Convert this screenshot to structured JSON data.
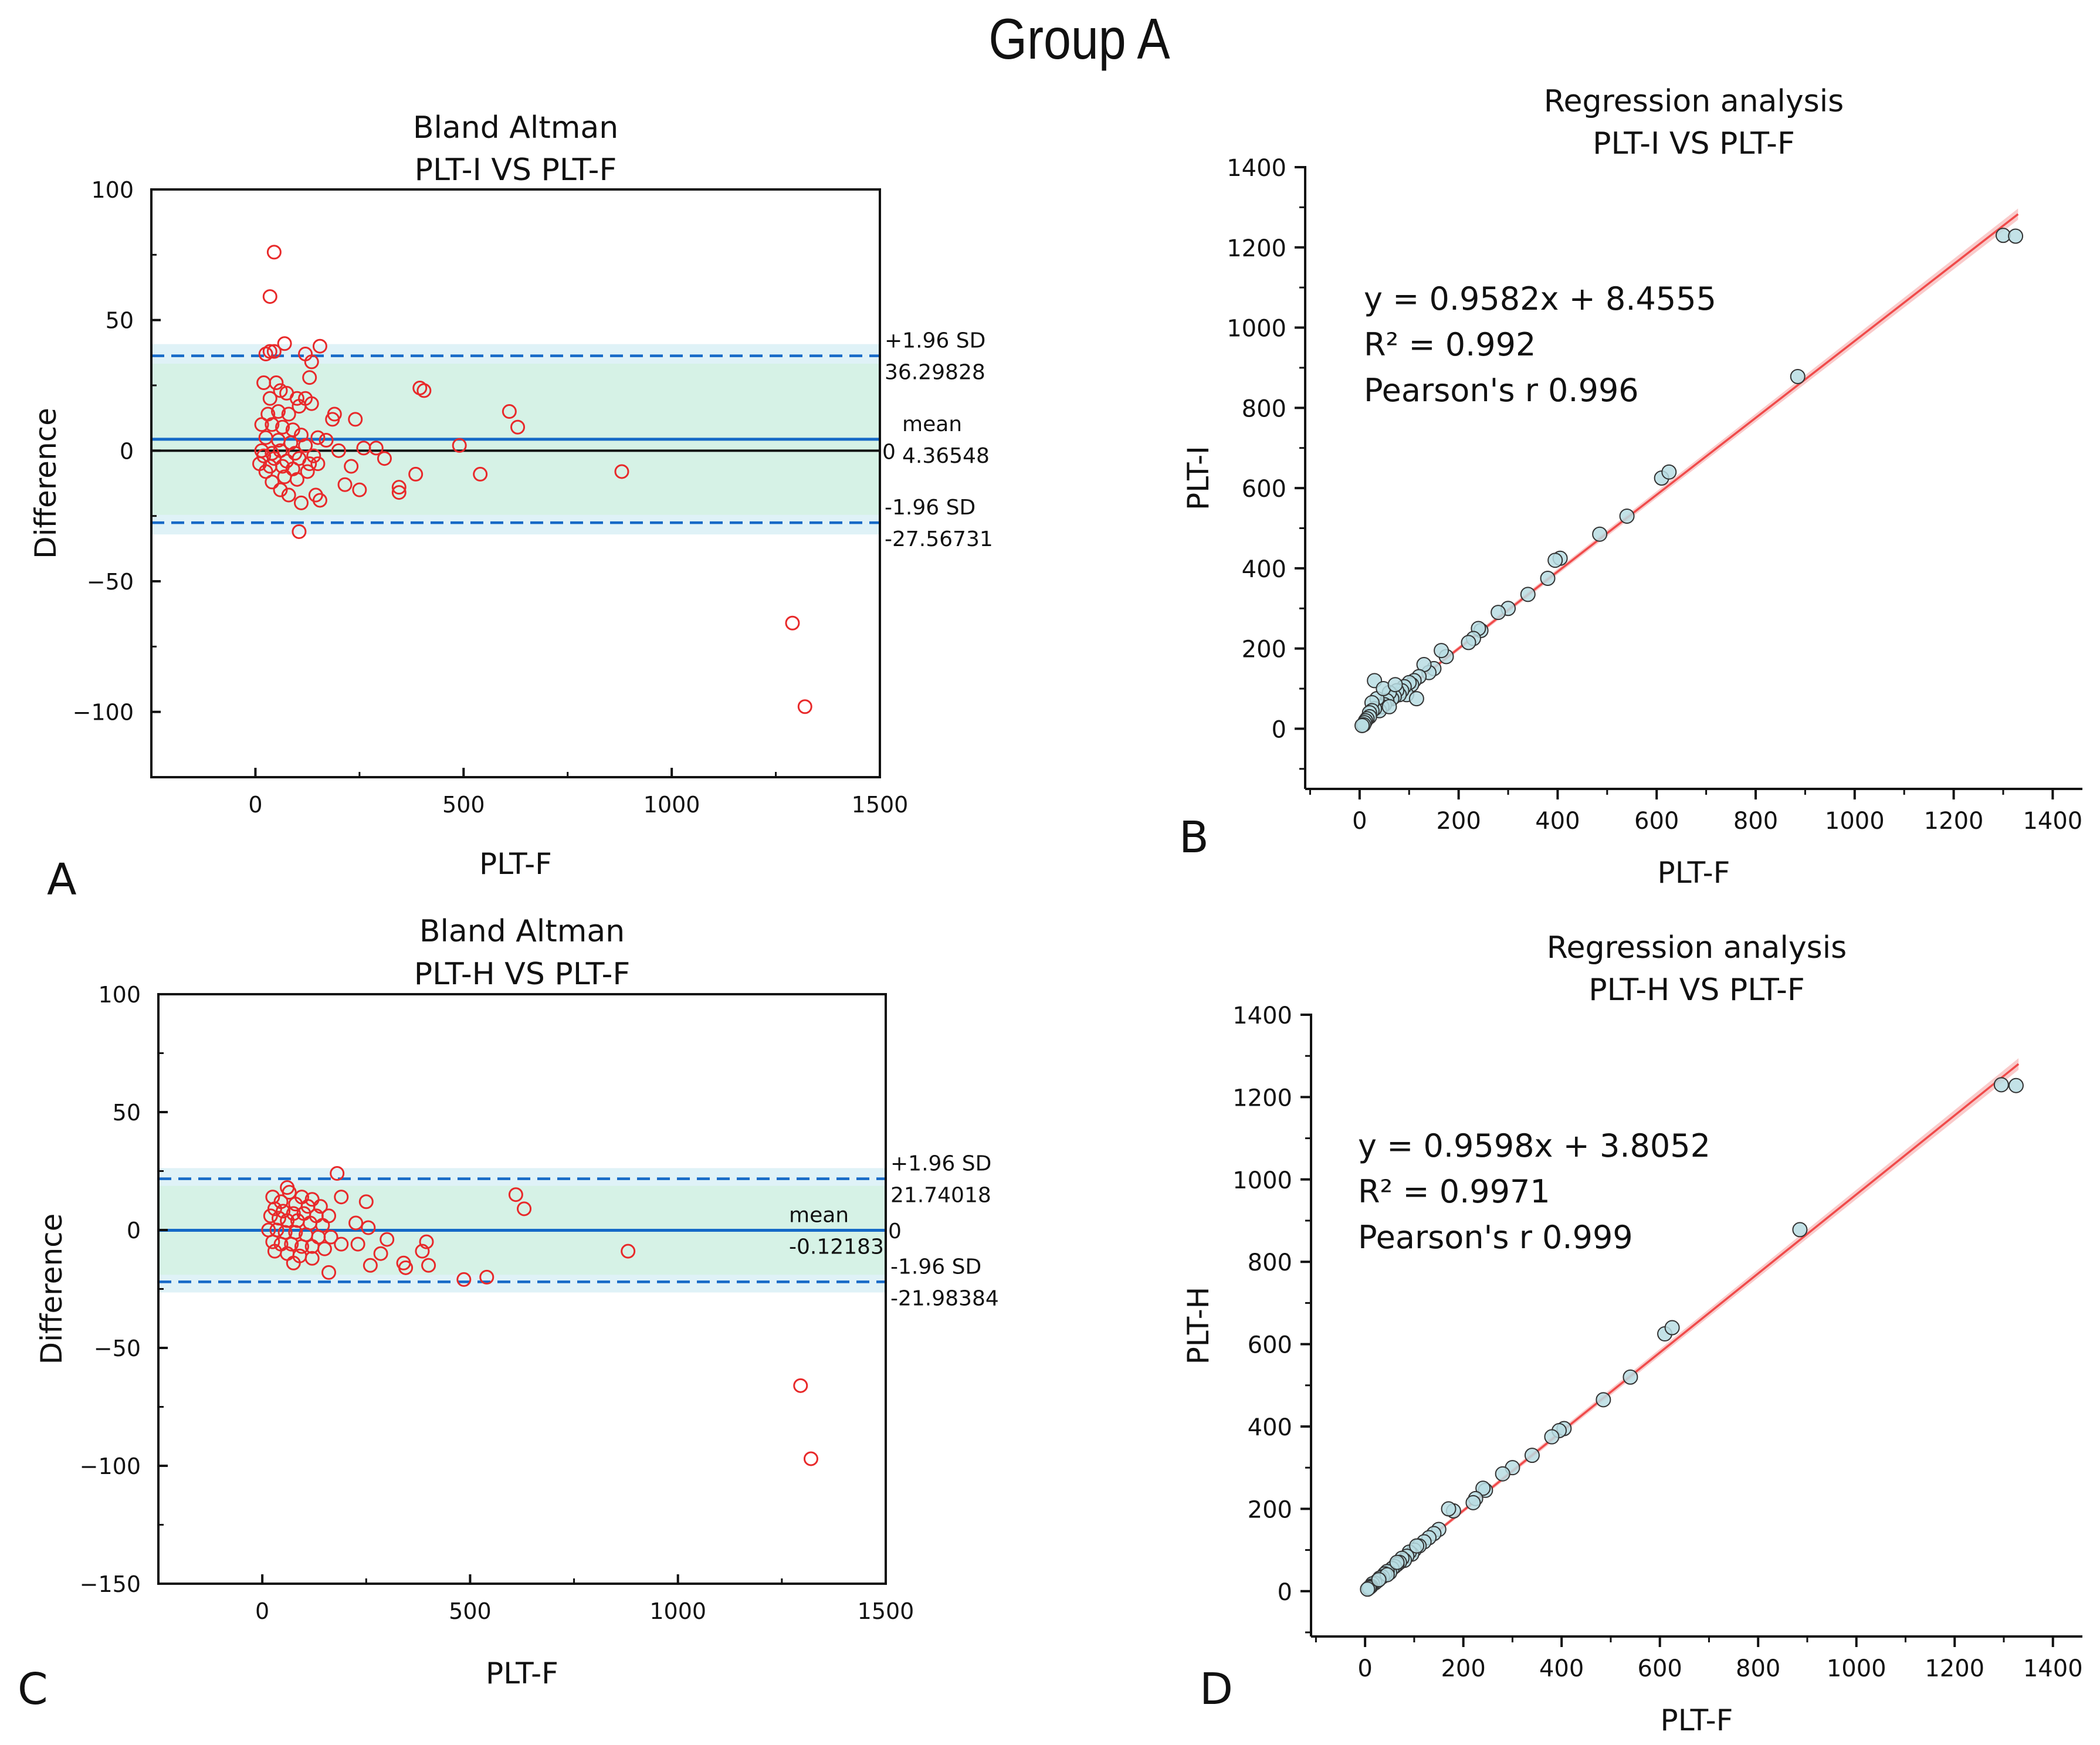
{
  "figure_title": "Group A",
  "panel_labels": [
    "A",
    "B",
    "C",
    "D"
  ],
  "colors": {
    "red": "#e8292a",
    "blue": "#1569c7",
    "loa_band": "#dff2f7",
    "mean_band": "#d6f2e6",
    "scatter_fill": "#b8dde3",
    "regression_line": "#f04a4a",
    "regression_band": "#f7b5b5"
  },
  "chart_data": [
    {
      "type": "scatter",
      "subtype": "bland-altman",
      "panel": "A",
      "title": [
        "Bland Altman",
        "PLT-I VS PLT-F"
      ],
      "xlabel": "PLT-F",
      "ylabel": "Difference",
      "xlim": [
        -250,
        1500
      ],
      "ylim": [
        -125,
        100
      ],
      "xticks": [
        0,
        500,
        1000,
        1500
      ],
      "yticks": [
        -100,
        -50,
        0,
        50,
        100
      ],
      "ytick_labels": [
        "−100",
        "−50",
        "0",
        "50",
        "100"
      ],
      "mean": 4.36548,
      "upper_loa": 36.29828,
      "lower_loa": -27.56731,
      "annotations": {
        "upper_label": "+1.96 SD",
        "upper_value": "36.29828",
        "mean_label": "mean",
        "mean_value": "4.36548",
        "zero_label": "0",
        "lower_label": "-1.96 SD",
        "lower_value": "-27.56731"
      },
      "points": [
        [
          45,
          76
        ],
        [
          35,
          59
        ],
        [
          70,
          41
        ],
        [
          155,
          40
        ],
        [
          35,
          38
        ],
        [
          25,
          37
        ],
        [
          45,
          38
        ],
        [
          120,
          37
        ],
        [
          135,
          34
        ],
        [
          130,
          28
        ],
        [
          50,
          26
        ],
        [
          20,
          26
        ],
        [
          60,
          23
        ],
        [
          75,
          22
        ],
        [
          395,
          24
        ],
        [
          405,
          23
        ],
        [
          100,
          20
        ],
        [
          120,
          20
        ],
        [
          35,
          20
        ],
        [
          135,
          18
        ],
        [
          610,
          15
        ],
        [
          55,
          15
        ],
        [
          105,
          17
        ],
        [
          80,
          14
        ],
        [
          30,
          14
        ],
        [
          190,
          14
        ],
        [
          185,
          12
        ],
        [
          240,
          12
        ],
        [
          630,
          9
        ],
        [
          15,
          10
        ],
        [
          40,
          10
        ],
        [
          65,
          9
        ],
        [
          90,
          8
        ],
        [
          110,
          6
        ],
        [
          150,
          5
        ],
        [
          170,
          4
        ],
        [
          25,
          5
        ],
        [
          55,
          4
        ],
        [
          85,
          3
        ],
        [
          120,
          2
        ],
        [
          490,
          2
        ],
        [
          260,
          1
        ],
        [
          290,
          1
        ],
        [
          200,
          0
        ],
        [
          15,
          0
        ],
        [
          40,
          -1
        ],
        [
          60,
          0
        ],
        [
          95,
          -1
        ],
        [
          140,
          -2
        ],
        [
          20,
          -2
        ],
        [
          45,
          -3
        ],
        [
          75,
          -4
        ],
        [
          105,
          -3
        ],
        [
          130,
          -5
        ],
        [
          10,
          -5
        ],
        [
          35,
          -6
        ],
        [
          65,
          -6
        ],
        [
          230,
          -6
        ],
        [
          310,
          -3
        ],
        [
          150,
          -5
        ],
        [
          90,
          -7
        ],
        [
          125,
          -8
        ],
        [
          25,
          -8
        ],
        [
          385,
          -9
        ],
        [
          540,
          -9
        ],
        [
          880,
          -8
        ],
        [
          70,
          -10
        ],
        [
          100,
          -11
        ],
        [
          40,
          -12
        ],
        [
          215,
          -13
        ],
        [
          250,
          -15
        ],
        [
          345,
          -14
        ],
        [
          345,
          -16
        ],
        [
          60,
          -15
        ],
        [
          80,
          -17
        ],
        [
          145,
          -17
        ],
        [
          155,
          -19
        ],
        [
          110,
          -20
        ],
        [
          105,
          -31
        ],
        [
          1290,
          -66
        ],
        [
          1320,
          -98
        ]
      ]
    },
    {
      "type": "scatter",
      "subtype": "regression",
      "panel": "B",
      "title": [
        "Regression analysis",
        "PLT-I VS PLT-F"
      ],
      "xlabel": "PLT-F",
      "ylabel": "PLT-I",
      "xlim": [
        -110,
        1460
      ],
      "ylim": [
        -150,
        1400
      ],
      "xticks": [
        0,
        200,
        400,
        600,
        800,
        1000,
        1200,
        1400
      ],
      "yticks": [
        0,
        200,
        400,
        600,
        800,
        1000,
        1200,
        1400
      ],
      "equation": "y = 0.9582x + 8.4555",
      "r_squared": "R² = 0.992",
      "pearson": "Pearson's r  0.996",
      "slope": 0.9582,
      "intercept": 8.4555,
      "fit_range": [
        0,
        1330
      ],
      "points": [
        [
          1300,
          1230
        ],
        [
          1325,
          1228
        ],
        [
          885,
          878
        ],
        [
          610,
          625
        ],
        [
          625,
          640
        ],
        [
          540,
          530
        ],
        [
          485,
          485
        ],
        [
          405,
          425
        ],
        [
          395,
          420
        ],
        [
          380,
          375
        ],
        [
          340,
          335
        ],
        [
          300,
          300
        ],
        [
          280,
          290
        ],
        [
          245,
          245
        ],
        [
          240,
          250
        ],
        [
          230,
          225
        ],
        [
          220,
          215
        ],
        [
          175,
          180
        ],
        [
          165,
          195
        ],
        [
          150,
          150
        ],
        [
          140,
          140
        ],
        [
          130,
          160
        ],
        [
          120,
          130
        ],
        [
          110,
          120
        ],
        [
          105,
          110
        ],
        [
          100,
          115
        ],
        [
          95,
          85
        ],
        [
          90,
          105
        ],
        [
          85,
          95
        ],
        [
          80,
          85
        ],
        [
          75,
          95
        ],
        [
          70,
          80
        ],
        [
          65,
          75
        ],
        [
          60,
          90
        ],
        [
          55,
          70
        ],
        [
          50,
          60
        ],
        [
          45,
          55
        ],
        [
          40,
          45
        ],
        [
          35,
          75
        ],
        [
          30,
          50
        ],
        [
          30,
          120
        ],
        [
          25,
          65
        ],
        [
          25,
          45
        ],
        [
          20,
          40
        ],
        [
          20,
          30
        ],
        [
          15,
          25
        ],
        [
          12,
          20
        ],
        [
          10,
          15
        ],
        [
          8,
          10
        ],
        [
          5,
          8
        ],
        [
          48,
          100
        ],
        [
          72,
          110
        ],
        [
          115,
          75
        ],
        [
          60,
          55
        ]
      ]
    },
    {
      "type": "scatter",
      "subtype": "bland-altman",
      "panel": "C",
      "title": [
        "Bland Altman",
        "PLT-H VS PLT-F"
      ],
      "xlabel": "PLT-F",
      "ylabel": "Difference",
      "xlim": [
        -250,
        1500
      ],
      "ylim": [
        -150,
        100
      ],
      "xticks": [
        0,
        500,
        1000,
        1500
      ],
      "yticks": [
        -150,
        -100,
        -50,
        0,
        50,
        100
      ],
      "ytick_labels": [
        "−150",
        "−100",
        "−50",
        "0",
        "50",
        "100"
      ],
      "mean": -0.12183,
      "upper_loa": 21.74018,
      "lower_loa": -21.98384,
      "annotations": {
        "upper_label": "+1.96 SD",
        "upper_value": "21.74018",
        "mean_label": "mean",
        "mean_value": "-0.12183",
        "zero_label": "0",
        "lower_label": "-1.96 SD",
        "lower_value": "-21.98384"
      },
      "points": [
        [
          180,
          24
        ],
        [
          60,
          18
        ],
        [
          65,
          16
        ],
        [
          25,
          14
        ],
        [
          190,
          14
        ],
        [
          95,
          14
        ],
        [
          610,
          15
        ],
        [
          630,
          9
        ],
        [
          250,
          12
        ],
        [
          120,
          13
        ],
        [
          45,
          12
        ],
        [
          80,
          11
        ],
        [
          110,
          10
        ],
        [
          140,
          10
        ],
        [
          30,
          9
        ],
        [
          50,
          8
        ],
        [
          75,
          7
        ],
        [
          100,
          7
        ],
        [
          130,
          6
        ],
        [
          160,
          6
        ],
        [
          20,
          6
        ],
        [
          40,
          5
        ],
        [
          60,
          4
        ],
        [
          85,
          4
        ],
        [
          115,
          3
        ],
        [
          145,
          2
        ],
        [
          225,
          3
        ],
        [
          255,
          1
        ],
        [
          15,
          0
        ],
        [
          35,
          0
        ],
        [
          55,
          -1
        ],
        [
          80,
          -1
        ],
        [
          105,
          -2
        ],
        [
          135,
          -3
        ],
        [
          165,
          -3
        ],
        [
          300,
          -4
        ],
        [
          395,
          -5
        ],
        [
          25,
          -5
        ],
        [
          45,
          -6
        ],
        [
          70,
          -6
        ],
        [
          95,
          -7
        ],
        [
          120,
          -7
        ],
        [
          150,
          -8
        ],
        [
          190,
          -6
        ],
        [
          230,
          -6
        ],
        [
          880,
          -9
        ],
        [
          285,
          -10
        ],
        [
          340,
          -14
        ],
        [
          345,
          -16
        ],
        [
          30,
          -9
        ],
        [
          60,
          -10
        ],
        [
          90,
          -11
        ],
        [
          120,
          -12
        ],
        [
          385,
          -9
        ],
        [
          400,
          -15
        ],
        [
          260,
          -15
        ],
        [
          160,
          -18
        ],
        [
          485,
          -21
        ],
        [
          540,
          -20
        ],
        [
          75,
          -14
        ],
        [
          1295,
          -66
        ],
        [
          1320,
          -97
        ]
      ]
    },
    {
      "type": "scatter",
      "subtype": "regression",
      "panel": "D",
      "title": [
        "Regression analysis",
        "PLT-H VS PLT-F"
      ],
      "xlabel": "PLT-F",
      "ylabel": "PLT-H",
      "xlim": [
        -110,
        1460
      ],
      "ylim": [
        -110,
        1400
      ],
      "xticks": [
        0,
        200,
        400,
        600,
        800,
        1000,
        1200,
        1400
      ],
      "yticks": [
        0,
        200,
        400,
        600,
        800,
        1000,
        1200,
        1400
      ],
      "equation": "y = 0.9598x + 3.8052",
      "r_squared": "R² = 0.9971",
      "pearson": "Pearson's r  0.999",
      "slope": 0.9598,
      "intercept": 3.8052,
      "fit_range": [
        0,
        1330
      ],
      "points": [
        [
          1295,
          1230
        ],
        [
          1325,
          1228
        ],
        [
          885,
          878
        ],
        [
          610,
          625
        ],
        [
          625,
          640
        ],
        [
          540,
          520
        ],
        [
          485,
          465
        ],
        [
          405,
          395
        ],
        [
          395,
          390
        ],
        [
          380,
          375
        ],
        [
          340,
          330
        ],
        [
          300,
          300
        ],
        [
          280,
          285
        ],
        [
          245,
          245
        ],
        [
          240,
          250
        ],
        [
          225,
          225
        ],
        [
          220,
          215
        ],
        [
          180,
          195
        ],
        [
          170,
          200
        ],
        [
          150,
          150
        ],
        [
          140,
          140
        ],
        [
          130,
          130
        ],
        [
          120,
          120
        ],
        [
          110,
          110
        ],
        [
          100,
          100
        ],
        [
          95,
          90
        ],
        [
          90,
          95
        ],
        [
          85,
          85
        ],
        [
          80,
          75
        ],
        [
          75,
          80
        ],
        [
          70,
          70
        ],
        [
          65,
          65
        ],
        [
          60,
          60
        ],
        [
          55,
          55
        ],
        [
          50,
          45
        ],
        [
          45,
          48
        ],
        [
          40,
          42
        ],
        [
          35,
          35
        ],
        [
          30,
          32
        ],
        [
          25,
          25
        ],
        [
          20,
          20
        ],
        [
          15,
          18
        ],
        [
          12,
          12
        ],
        [
          10,
          10
        ],
        [
          8,
          8
        ],
        [
          5,
          5
        ],
        [
          105,
          110
        ],
        [
          65,
          70
        ],
        [
          45,
          40
        ],
        [
          28,
          28
        ]
      ]
    }
  ]
}
